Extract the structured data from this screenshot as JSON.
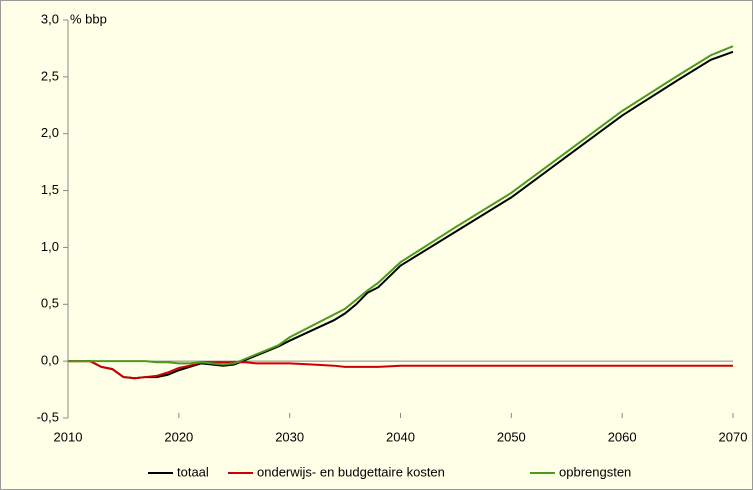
{
  "chart_data": {
    "type": "line",
    "y_label": "% bbp",
    "x": [
      2010,
      2011,
      2012,
      2013,
      2014,
      2015,
      2016,
      2017,
      2018,
      2019,
      2020,
      2021,
      2022,
      2023,
      2024,
      2025,
      2026,
      2027,
      2028,
      2029,
      2030,
      2032,
      2034,
      2035,
      2036,
      2037,
      2038,
      2040,
      2045,
      2050,
      2055,
      2060,
      2065,
      2068,
      2070
    ],
    "series": [
      {
        "name": "totaal",
        "color": "#000000",
        "values": [
          0,
          0,
          0,
          -0.05,
          -0.07,
          -0.14,
          -0.15,
          -0.14,
          -0.14,
          -0.12,
          -0.08,
          -0.05,
          -0.02,
          -0.03,
          -0.04,
          -0.03,
          0.01,
          0.05,
          0.09,
          0.13,
          0.18,
          0.27,
          0.36,
          0.42,
          0.5,
          0.6,
          0.65,
          0.84,
          1.14,
          1.44,
          1.8,
          2.16,
          2.47,
          2.65,
          2.72
        ]
      },
      {
        "name": "onderwijs- en budgettaire kosten",
        "color": "#cc0000",
        "values": [
          0,
          0,
          0,
          -0.05,
          -0.07,
          -0.14,
          -0.15,
          -0.14,
          -0.13,
          -0.1,
          -0.06,
          -0.04,
          -0.01,
          -0.01,
          -0.01,
          -0.01,
          -0.01,
          -0.02,
          -0.02,
          -0.02,
          -0.02,
          -0.03,
          -0.04,
          -0.05,
          -0.05,
          -0.05,
          -0.05,
          -0.04,
          -0.04,
          -0.04,
          -0.04,
          -0.04,
          -0.04,
          -0.04,
          -0.04
        ]
      },
      {
        "name": "opbrengsten",
        "color": "#4c9a1c",
        "values": [
          0,
          0,
          0,
          0,
          0,
          0,
          0,
          0,
          -0.01,
          -0.01,
          -0.02,
          -0.02,
          -0.01,
          -0.02,
          -0.03,
          -0.02,
          0.02,
          0.06,
          0.1,
          0.14,
          0.21,
          0.31,
          0.41,
          0.46,
          0.54,
          0.62,
          0.69,
          0.87,
          1.18,
          1.48,
          1.84,
          2.2,
          2.51,
          2.69,
          2.77
        ]
      }
    ],
    "xlim": [
      2010,
      2070
    ],
    "xticks": [
      2010,
      2020,
      2030,
      2040,
      2050,
      2060,
      2070
    ],
    "ylim": [
      -0.5,
      3.0
    ],
    "yticks": [
      {
        "value": -0.5,
        "label": "-0,5"
      },
      {
        "value": 0,
        "label": "0,0"
      },
      {
        "value": 0.5,
        "label": "0,5"
      },
      {
        "value": 1.0,
        "label": "1,0"
      },
      {
        "value": 1.5,
        "label": "1,5"
      },
      {
        "value": 2.0,
        "label": "2,0"
      },
      {
        "value": 2.5,
        "label": "2,5"
      },
      {
        "value": 3.0,
        "label": "3,0"
      }
    ],
    "legend": "bottom"
  }
}
